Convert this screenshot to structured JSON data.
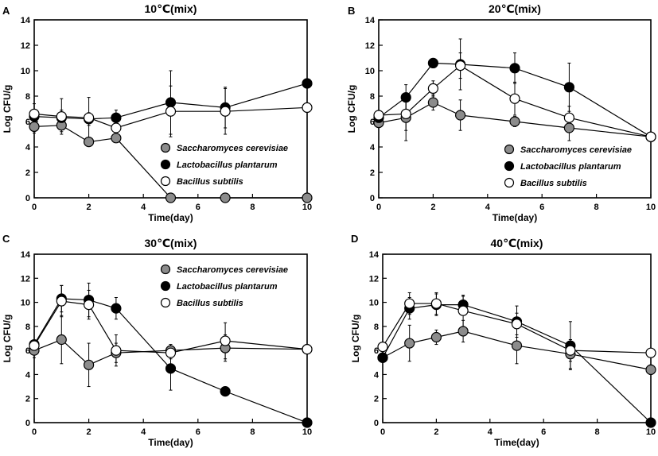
{
  "chart_data": [
    {
      "panel": "A",
      "type": "line",
      "title": "10℃(mix)",
      "xlabel": "Time(day)",
      "ylabel": "Log CFU/g",
      "xlim": [
        0,
        10
      ],
      "ylim": [
        0,
        14
      ],
      "xticks": [
        0,
        2,
        4,
        6,
        8,
        10
      ],
      "yticks": [
        0,
        2,
        4,
        6,
        8,
        10,
        12,
        14
      ],
      "legend_position": "bottom-right",
      "grid": false,
      "series": [
        {
          "name": "Saccharomyces cerevisiae",
          "color": "#8c8c8c",
          "x": [
            0,
            1,
            2,
            3,
            5,
            7,
            10
          ],
          "y": [
            5.6,
            5.7,
            4.4,
            4.7,
            0.0,
            0.0,
            0.0
          ],
          "err": [
            0.5,
            0.5,
            0.3,
            0.3,
            0,
            0,
            0
          ]
        },
        {
          "name": "Lactobacillus plantarum",
          "color": "#000000",
          "x": [
            0,
            1,
            2,
            3,
            5,
            7,
            10
          ],
          "y": [
            6.4,
            6.3,
            6.2,
            6.3,
            7.5,
            7.1,
            9.0
          ],
          "err": [
            0.5,
            0.6,
            0.5,
            0.6,
            2.5,
            1.6,
            0
          ]
        },
        {
          "name": "Bacillus subtilis",
          "color": "#ffffff",
          "x": [
            0,
            1,
            2,
            3,
            5,
            7,
            10
          ],
          "y": [
            6.6,
            6.4,
            6.3,
            5.5,
            6.8,
            6.8,
            7.1
          ],
          "err": [
            0.8,
            1.4,
            1.6,
            0.8,
            2.0,
            1.8,
            0
          ]
        }
      ]
    },
    {
      "panel": "B",
      "type": "line",
      "title": "20℃(mix)",
      "xlabel": "Time(day)",
      "ylabel": "Log CFU/g",
      "xlim": [
        0,
        10
      ],
      "ylim": [
        0,
        14
      ],
      "xticks": [
        0,
        2,
        4,
        6,
        8,
        10
      ],
      "yticks": [
        0,
        2,
        4,
        6,
        8,
        10,
        12,
        14
      ],
      "legend_position": "bottom-right",
      "grid": false,
      "series": [
        {
          "name": "Saccharomyces cerevisiae",
          "color": "#8c8c8c",
          "x": [
            0,
            1,
            2,
            3,
            5,
            7,
            10
          ],
          "y": [
            5.9,
            6.3,
            7.5,
            6.5,
            6.0,
            5.5,
            4.8
          ],
          "err": [
            0.3,
            1.8,
            0.6,
            1.2,
            0.4,
            1.0,
            0.3
          ]
        },
        {
          "name": "Lactobacillus plantarum",
          "color": "#000000",
          "x": [
            0,
            1,
            2,
            3,
            5,
            7,
            10
          ],
          "y": [
            6.3,
            7.9,
            10.6,
            10.5,
            10.2,
            8.7,
            4.8
          ],
          "err": [
            0.3,
            1.0,
            0.3,
            2.0,
            1.2,
            1.9,
            0.3
          ]
        },
        {
          "name": "Bacillus subtilis",
          "color": "#ffffff",
          "x": [
            0,
            1,
            2,
            3,
            5,
            7,
            10
          ],
          "y": [
            6.5,
            6.6,
            8.6,
            10.4,
            7.8,
            6.3,
            4.8
          ],
          "err": [
            0.3,
            1.3,
            0.6,
            1.0,
            1.3,
            0.9,
            0.3
          ]
        }
      ]
    },
    {
      "panel": "C",
      "type": "line",
      "title": "30℃(mix)",
      "xlabel": "Time(day)",
      "ylabel": "Log CFU/g",
      "xlim": [
        0,
        10
      ],
      "ylim": [
        0,
        14
      ],
      "xticks": [
        0,
        2,
        4,
        6,
        8,
        10
      ],
      "yticks": [
        0,
        2,
        4,
        6,
        8,
        10,
        12,
        14
      ],
      "legend_position": "top-right",
      "grid": false,
      "series": [
        {
          "name": "Saccharomyces cerevisiae",
          "color": "#8c8c8c",
          "x": [
            0,
            1,
            2,
            3,
            5,
            7,
            10
          ],
          "y": [
            6.0,
            6.9,
            4.8,
            5.8,
            6.0,
            6.2,
            6.1
          ],
          "err": [
            0.6,
            2.0,
            1.8,
            0.8,
            0.5,
            1.1,
            0.3
          ]
        },
        {
          "name": "Lactobacillus plantarum",
          "color": "#000000",
          "x": [
            0,
            1,
            2,
            3,
            5,
            7,
            10
          ],
          "y": [
            6.5,
            10.3,
            10.2,
            9.5,
            4.5,
            2.6,
            0.0
          ],
          "err": [
            0.3,
            1.1,
            1.4,
            0.9,
            1.8,
            0,
            0
          ]
        },
        {
          "name": "Bacillus subtilis",
          "color": "#ffffff",
          "x": [
            0,
            1,
            2,
            3,
            5,
            7,
            10
          ],
          "y": [
            6.4,
            10.1,
            9.8,
            6.0,
            5.8,
            6.8,
            6.1
          ],
          "err": [
            0.3,
            1.3,
            1.2,
            1.3,
            0.5,
            1.5,
            0.3
          ]
        }
      ]
    },
    {
      "panel": "D",
      "type": "line",
      "title": "40℃(mix)",
      "xlabel": "Time(day)",
      "ylabel": "Log CFU/g",
      "xlim": [
        0,
        10
      ],
      "ylim": [
        0,
        14
      ],
      "xticks": [
        0,
        2,
        4,
        6,
        8,
        10
      ],
      "yticks": [
        0,
        2,
        4,
        6,
        8,
        10,
        12,
        14
      ],
      "legend_position": "none",
      "grid": false,
      "series": [
        {
          "name": "Saccharomyces cerevisiae",
          "color": "#8c8c8c",
          "x": [
            0,
            1,
            2,
            3,
            5,
            7,
            10
          ],
          "y": [
            5.4,
            6.6,
            7.1,
            7.6,
            6.4,
            5.7,
            4.4
          ],
          "err": [
            0.3,
            1.5,
            0.6,
            0.9,
            1.5,
            1.2,
            0.4
          ]
        },
        {
          "name": "Lactobacillus plantarum",
          "color": "#000000",
          "x": [
            0,
            1,
            2,
            3,
            5,
            7,
            10
          ],
          "y": [
            5.4,
            9.5,
            9.8,
            9.8,
            8.4,
            6.4,
            0.0
          ],
          "err": [
            0.3,
            0.9,
            0.9,
            0.7,
            1.3,
            2.0,
            0
          ]
        },
        {
          "name": "Bacillus subtilis",
          "color": "#ffffff",
          "x": [
            0,
            1,
            2,
            3,
            5,
            7,
            10
          ],
          "y": [
            6.3,
            9.9,
            9.9,
            9.3,
            8.2,
            6.0,
            5.8
          ],
          "err": [
            0.3,
            0.9,
            0.9,
            1.3,
            0.9,
            0.9,
            0.3
          ]
        }
      ]
    }
  ]
}
